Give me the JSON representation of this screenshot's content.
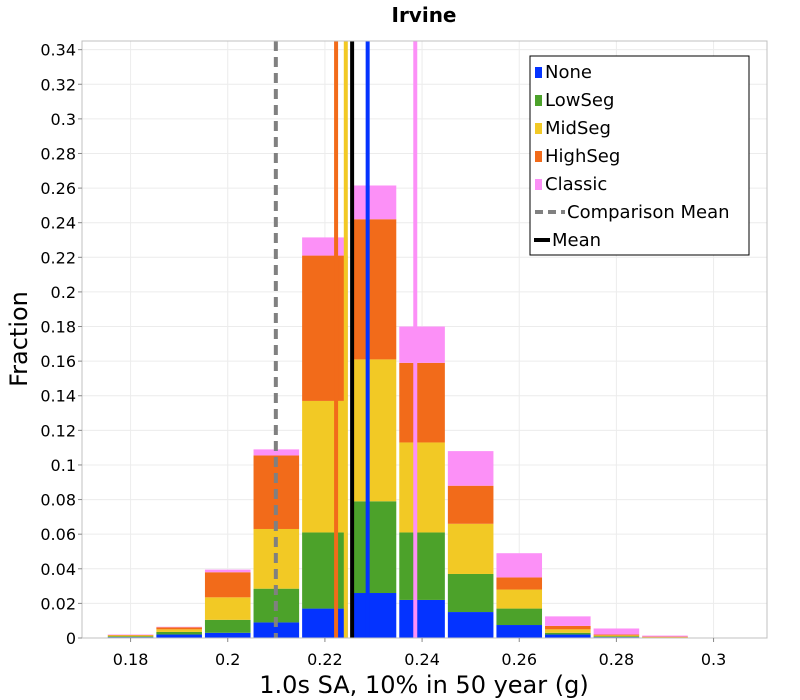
{
  "chart_data": {
    "type": "bar",
    "stacked": true,
    "title": "Irvine",
    "xlabel": "1.0s SA, 10% in 50 year (g)",
    "ylabel": "Fraction",
    "xlim": [
      0.17,
      0.311
    ],
    "ylim": [
      0,
      0.345
    ],
    "bin_width": 0.01,
    "bin_centers": [
      0.18,
      0.19,
      0.2,
      0.21,
      0.22,
      0.23,
      0.24,
      0.25,
      0.26,
      0.27,
      0.28,
      0.29,
      0.3
    ],
    "x_ticks": [
      0.18,
      0.2,
      0.22,
      0.24,
      0.26,
      0.28,
      0.3
    ],
    "x_tick_labels": [
      "0.18",
      "0.2",
      "0.22",
      "0.24",
      "0.26",
      "0.28",
      "0.3"
    ],
    "y_ticks": [
      0,
      0.02,
      0.04,
      0.06,
      0.08,
      0.1,
      0.12,
      0.14,
      0.16,
      0.18,
      0.2,
      0.22,
      0.24,
      0.26,
      0.28,
      0.3,
      0.32,
      0.34
    ],
    "y_tick_labels": [
      "0",
      "0.02",
      "0.04",
      "0.06",
      "0.08",
      "0.1",
      "0.12",
      "0.14",
      "0.16",
      "0.18",
      "0.2",
      "0.22",
      "0.24",
      "0.26",
      "0.28",
      "0.3",
      "0.32",
      "0.34"
    ],
    "grid": true,
    "legend_position": "top-right",
    "series": [
      {
        "name": "None",
        "color": "#0433ff",
        "values": [
          0.0005,
          0.002,
          0.003,
          0.009,
          0.017,
          0.026,
          0.022,
          0.015,
          0.0075,
          0.002,
          0.0005,
          0.0002,
          0
        ]
      },
      {
        "name": "LowSeg",
        "color": "#4ca22a",
        "values": [
          0.0005,
          0.0015,
          0.0075,
          0.0195,
          0.044,
          0.053,
          0.039,
          0.022,
          0.0095,
          0.001,
          0.0005,
          0.0002,
          0
        ]
      },
      {
        "name": "MidSeg",
        "color": "#f2c925",
        "values": [
          0.0005,
          0.0015,
          0.013,
          0.0345,
          0.076,
          0.082,
          0.052,
          0.029,
          0.011,
          0.002,
          0.0005,
          0.0002,
          0
        ]
      },
      {
        "name": "HighSeg",
        "color": "#f26b1a",
        "values": [
          0.0003,
          0.0012,
          0.0145,
          0.0425,
          0.084,
          0.081,
          0.046,
          0.022,
          0.007,
          0.002,
          0.0005,
          0.0002,
          0
        ]
      },
      {
        "name": "Classic",
        "color": "#fc90f7",
        "values": [
          0.0002,
          0.0003,
          0.0015,
          0.0035,
          0.0105,
          0.0195,
          0.021,
          0.02,
          0.014,
          0.0055,
          0.0035,
          0.0006,
          0.0002
        ]
      }
    ],
    "vlines": [
      {
        "name": "None",
        "x": 0.2288,
        "color": "#0433ff",
        "style": "solid"
      },
      {
        "name": "MidSeg",
        "x": 0.2243,
        "color": "#f2c925",
        "style": "solid"
      },
      {
        "name": "HighSeg",
        "x": 0.2223,
        "color": "#f26b1a",
        "style": "solid"
      },
      {
        "name": "Classic",
        "x": 0.2386,
        "color": "#fc90f7",
        "style": "solid"
      },
      {
        "name": "Comparison Mean",
        "x": 0.2099,
        "color": "#808080",
        "style": "dashed"
      },
      {
        "name": "Mean",
        "x": 0.2256,
        "color": "#000000",
        "style": "solid"
      }
    ],
    "legend": [
      {
        "label": "None",
        "color": "#0433ff",
        "kind": "box"
      },
      {
        "label": "LowSeg",
        "color": "#4ca22a",
        "kind": "box"
      },
      {
        "label": "MidSeg",
        "color": "#f2c925",
        "kind": "box"
      },
      {
        "label": "HighSeg",
        "color": "#f26b1a",
        "kind": "box"
      },
      {
        "label": "Classic",
        "color": "#fc90f7",
        "kind": "box"
      },
      {
        "label": "Comparison Mean",
        "color": "#808080",
        "kind": "dashed"
      },
      {
        "label": "Mean",
        "color": "#000000",
        "kind": "line"
      }
    ]
  }
}
